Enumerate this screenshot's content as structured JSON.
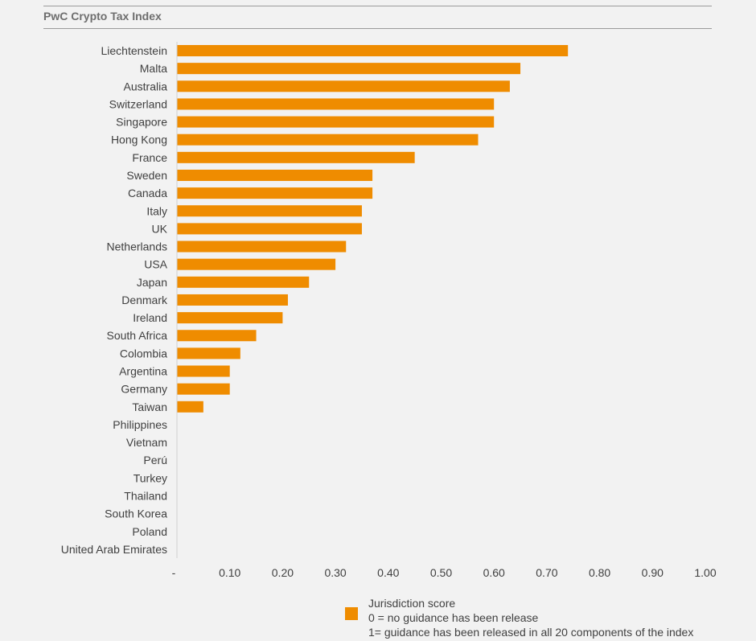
{
  "header": {
    "title": "PwC Crypto Tax Index"
  },
  "colors": {
    "bar": "#ef8c00",
    "axis": "#d0d0d0",
    "text": "#404040"
  },
  "chart_data": {
    "type": "bar",
    "orientation": "horizontal",
    "title": "PwC Crypto Tax Index",
    "xlabel": "",
    "ylabel": "",
    "xlim": [
      0,
      1.0
    ],
    "grid": false,
    "xticks": [
      "-",
      "0.10",
      "0.20",
      "0.30",
      "0.40",
      "0.50",
      "0.60",
      "0.70",
      "0.80",
      "0.90",
      "1.00"
    ],
    "categories": [
      "Liechtenstein",
      "Malta",
      "Australia",
      "Switzerland",
      "Singapore",
      "Hong Kong",
      "France",
      "Sweden",
      "Canada",
      "Italy",
      "UK",
      "Netherlands",
      "USA",
      "Japan",
      "Denmark",
      "Ireland",
      "South Africa",
      "Colombia",
      "Argentina",
      "Germany",
      "Taiwan",
      "Philippines",
      "Vietnam",
      "Perú",
      "Turkey",
      "Thailand",
      "South Korea",
      "Poland",
      "United Arab Emirates"
    ],
    "series": [
      {
        "name": "Jurisdiction score",
        "values": [
          0.74,
          0.65,
          0.63,
          0.6,
          0.6,
          0.57,
          0.45,
          0.37,
          0.37,
          0.35,
          0.35,
          0.32,
          0.3,
          0.25,
          0.21,
          0.2,
          0.15,
          0.12,
          0.1,
          0.1,
          0.05,
          0,
          0,
          0,
          0,
          0,
          0,
          0,
          0
        ]
      }
    ],
    "legend": {
      "position": "bottom",
      "lines": [
        "Jurisdiction score",
        "0 = no guidance has been release",
        "1= guidance has been released in all 20 components of the index"
      ]
    }
  }
}
